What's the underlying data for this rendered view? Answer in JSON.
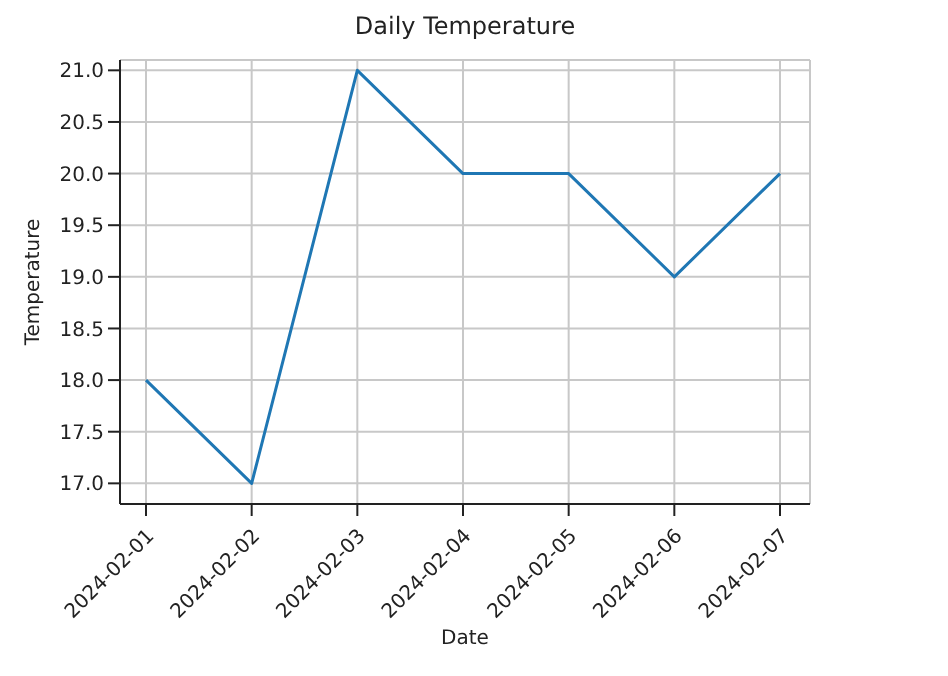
{
  "chart_data": {
    "type": "line",
    "title": "Daily Temperature",
    "xlabel": "Date",
    "ylabel": "Temperature",
    "categories": [
      "2024-02-01",
      "2024-02-02",
      "2024-02-03",
      "2024-02-04",
      "2024-02-05",
      "2024-02-06",
      "2024-02-07"
    ],
    "series": [
      {
        "color": "#1f77b4",
        "values": [
          18,
          17,
          21,
          20,
          20,
          19,
          20
        ]
      }
    ],
    "ylim": [
      16.8,
      21.1
    ],
    "yticks": [
      {
        "value": 17,
        "label": "17.0"
      },
      {
        "value": 17.5,
        "label": "17.5"
      },
      {
        "value": 18,
        "label": "18.0"
      },
      {
        "value": 18.5,
        "label": "18.5"
      },
      {
        "value": 19,
        "label": "19.0"
      },
      {
        "value": 19.5,
        "label": "19.5"
      },
      {
        "value": 20,
        "label": "20.0"
      },
      {
        "value": 20.5,
        "label": "20.5"
      },
      {
        "value": 21,
        "label": "21.0"
      }
    ],
    "grid": true,
    "legend": false,
    "marker": "none",
    "line_style": "solid"
  }
}
